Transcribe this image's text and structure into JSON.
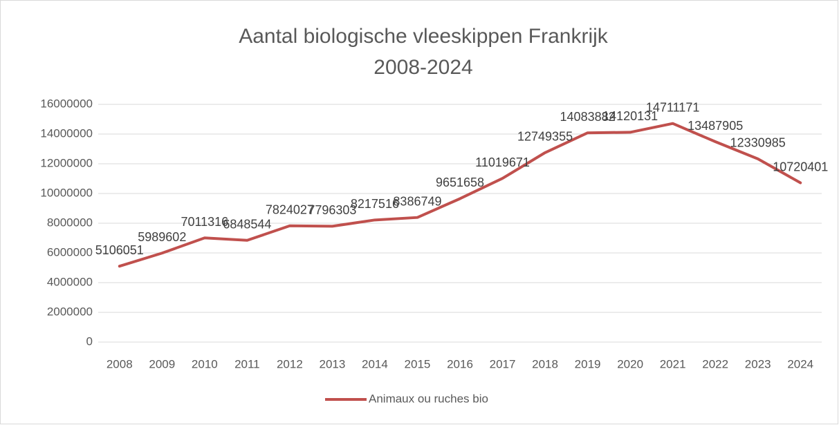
{
  "chart_data": {
    "type": "line",
    "title": "Aantal biologische vleeskippen Frankrijk",
    "subtitle": "2008-2024",
    "categories": [
      "2008",
      "2009",
      "2010",
      "2011",
      "2012",
      "2013",
      "2014",
      "2015",
      "2016",
      "2017",
      "2018",
      "2019",
      "2020",
      "2021",
      "2022",
      "2023",
      "2024"
    ],
    "series": [
      {
        "name": "Animaux ou ruches bio",
        "color": "#c0504d",
        "values": [
          5106051,
          5989602,
          7011316,
          6848544,
          7824027,
          7796303,
          8217516,
          8386749,
          9651658,
          11019671,
          12749355,
          14083882,
          14120131,
          14711171,
          13487905,
          12330985,
          10720401
        ]
      }
    ],
    "ylim": [
      0,
      16000000
    ],
    "yticks": [
      0,
      2000000,
      4000000,
      6000000,
      8000000,
      10000000,
      12000000,
      14000000,
      16000000
    ],
    "grid": true,
    "legend": "bottom"
  }
}
